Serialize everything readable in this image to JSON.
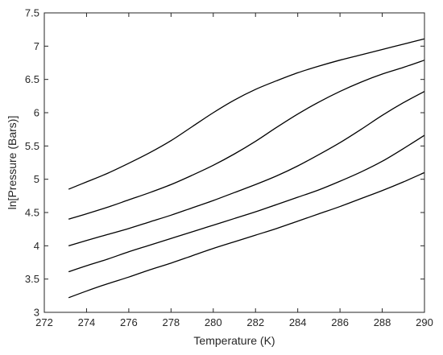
{
  "chart_data": {
    "type": "line",
    "title": "",
    "xlabel": "Temperature (K)",
    "ylabel": "ln[Pressure (Bars)]",
    "xlim": [
      272,
      290
    ],
    "ylim": [
      3,
      7.5
    ],
    "x_ticks": [
      272,
      274,
      276,
      278,
      280,
      282,
      284,
      286,
      288,
      290
    ],
    "y_ticks": [
      3,
      3.5,
      4,
      4.5,
      5,
      5.5,
      6,
      6.5,
      7,
      7.5
    ],
    "x_tick_labels": [
      "272",
      "274",
      "276",
      "278",
      "280",
      "282",
      "284",
      "286",
      "288",
      "290"
    ],
    "y_tick_labels": [
      "3",
      "3.5",
      "4",
      "4.5",
      "5",
      "5.5",
      "6",
      "6.5",
      "7",
      "7.5"
    ],
    "grid": false,
    "line_color": "#000000",
    "axis_color": "#262626",
    "series": [
      {
        "x": [
          273.15,
          274,
          275,
          276,
          277,
          278,
          279,
          280,
          281,
          282,
          283,
          284,
          285,
          286,
          287,
          288,
          289,
          290
        ],
        "values": [
          4.85,
          4.96,
          5.09,
          5.24,
          5.4,
          5.58,
          5.79,
          6.0,
          6.19,
          6.35,
          6.48,
          6.6,
          6.7,
          6.79,
          6.87,
          6.95,
          7.03,
          7.11
        ]
      },
      {
        "x": [
          273.15,
          274,
          275,
          276,
          277,
          278,
          279,
          280,
          281,
          282,
          283,
          284,
          285,
          286,
          287,
          288,
          289,
          290
        ],
        "values": [
          4.4,
          4.48,
          4.58,
          4.69,
          4.8,
          4.92,
          5.06,
          5.21,
          5.38,
          5.57,
          5.78,
          5.98,
          6.16,
          6.32,
          6.46,
          6.58,
          6.68,
          6.79
        ]
      },
      {
        "x": [
          273.15,
          274,
          275,
          276,
          277,
          278,
          279,
          280,
          281,
          282,
          283,
          284,
          285,
          286,
          287,
          288,
          289,
          290
        ],
        "values": [
          4.0,
          4.08,
          4.17,
          4.26,
          4.36,
          4.46,
          4.57,
          4.68,
          4.8,
          4.92,
          5.05,
          5.2,
          5.37,
          5.55,
          5.75,
          5.96,
          6.15,
          6.32
        ]
      },
      {
        "x": [
          273.15,
          274,
          275,
          276,
          277,
          278,
          279,
          280,
          281,
          282,
          283,
          284,
          285,
          286,
          287,
          288,
          289,
          290
        ],
        "values": [
          3.61,
          3.7,
          3.8,
          3.91,
          4.01,
          4.11,
          4.21,
          4.31,
          4.41,
          4.51,
          4.62,
          4.73,
          4.84,
          4.97,
          5.11,
          5.27,
          5.46,
          5.66
        ]
      },
      {
        "x": [
          273.15,
          274,
          275,
          276,
          277,
          278,
          279,
          280,
          281,
          282,
          283,
          284,
          285,
          286,
          287,
          288,
          289,
          290
        ],
        "values": [
          3.22,
          3.32,
          3.43,
          3.53,
          3.64,
          3.74,
          3.85,
          3.96,
          4.06,
          4.16,
          4.26,
          4.37,
          4.48,
          4.59,
          4.71,
          4.83,
          4.96,
          5.1
        ]
      }
    ]
  }
}
